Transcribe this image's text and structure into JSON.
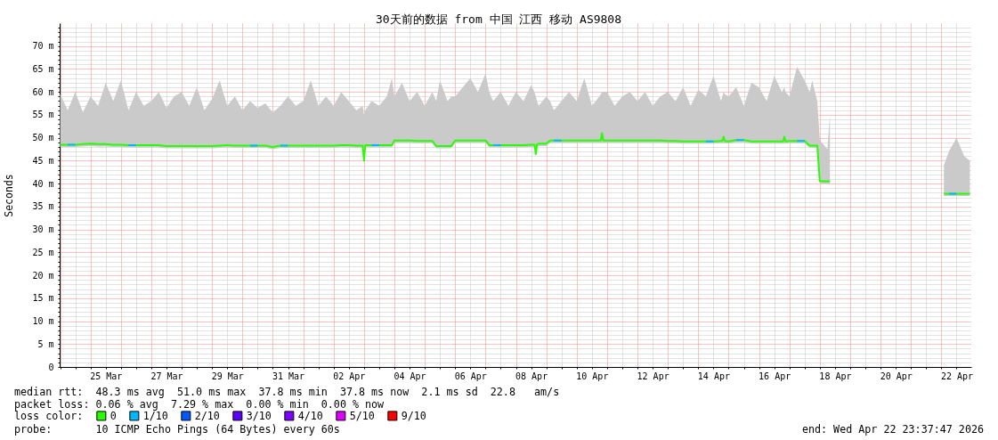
{
  "chart_data": {
    "type": "line",
    "title": "30天前的数据 from 中国 江西 移动 AS9808",
    "ylabel": "Seconds",
    "legend_title": "loss color:",
    "legend": "bottom",
    "grid": true,
    "xlim": [
      "2026-03-23T23:38",
      "2026-04-22T23:38"
    ],
    "xticks": [
      {
        "value": "2026-03-24T00:00",
        "label": null
      },
      {
        "value": "2026-03-24T12:00",
        "label": null
      },
      {
        "value": "2026-03-25T00:00",
        "label": null
      },
      {
        "value": "2026-03-25T12:00",
        "label": "25 Mar"
      },
      {
        "value": "2026-03-26T00:00",
        "label": null
      },
      {
        "value": "2026-03-26T12:00",
        "label": null
      },
      {
        "value": "2026-03-27T00:00",
        "label": null
      },
      {
        "value": "2026-03-27T12:00",
        "label": "27 Mar"
      },
      {
        "value": "2026-03-28T00:00",
        "label": null
      },
      {
        "value": "2026-03-28T12:00",
        "label": null
      },
      {
        "value": "2026-03-29T00:00",
        "label": null
      },
      {
        "value": "2026-03-29T12:00",
        "label": "29 Mar"
      },
      {
        "value": "2026-03-30T00:00",
        "label": null
      },
      {
        "value": "2026-03-30T12:00",
        "label": null
      },
      {
        "value": "2026-03-31T00:00",
        "label": null
      },
      {
        "value": "2026-03-31T12:00",
        "label": "31 Mar"
      },
      {
        "value": "2026-04-01T00:00",
        "label": null
      },
      {
        "value": "2026-04-01T12:00",
        "label": null
      },
      {
        "value": "2026-04-02T00:00",
        "label": null
      },
      {
        "value": "2026-04-02T12:00",
        "label": "02 Apr"
      },
      {
        "value": "2026-04-03T00:00",
        "label": null
      },
      {
        "value": "2026-04-03T12:00",
        "label": null
      },
      {
        "value": "2026-04-04T00:00",
        "label": null
      },
      {
        "value": "2026-04-04T12:00",
        "label": "04 Apr"
      },
      {
        "value": "2026-04-05T00:00",
        "label": null
      },
      {
        "value": "2026-04-05T12:00",
        "label": null
      },
      {
        "value": "2026-04-06T00:00",
        "label": null
      },
      {
        "value": "2026-04-06T12:00",
        "label": "06 Apr"
      },
      {
        "value": "2026-04-07T00:00",
        "label": null
      },
      {
        "value": "2026-04-07T12:00",
        "label": null
      },
      {
        "value": "2026-04-08T00:00",
        "label": null
      },
      {
        "value": "2026-04-08T12:00",
        "label": "08 Apr"
      },
      {
        "value": "2026-04-09T00:00",
        "label": null
      },
      {
        "value": "2026-04-09T12:00",
        "label": null
      },
      {
        "value": "2026-04-10T00:00",
        "label": null
      },
      {
        "value": "2026-04-10T12:00",
        "label": "10 Apr"
      },
      {
        "value": "2026-04-11T00:00",
        "label": null
      },
      {
        "value": "2026-04-11T12:00",
        "label": null
      },
      {
        "value": "2026-04-12T00:00",
        "label": null
      },
      {
        "value": "2026-04-12T12:00",
        "label": "12 Apr"
      },
      {
        "value": "2026-04-13T00:00",
        "label": null
      },
      {
        "value": "2026-04-13T12:00",
        "label": null
      },
      {
        "value": "2026-04-14T00:00",
        "label": null
      },
      {
        "value": "2026-04-14T12:00",
        "label": "14 Apr"
      },
      {
        "value": "2026-04-15T00:00",
        "label": null
      },
      {
        "value": "2026-04-15T12:00",
        "label": null
      },
      {
        "value": "2026-04-16T00:00",
        "label": null
      },
      {
        "value": "2026-04-16T12:00",
        "label": "16 Apr"
      },
      {
        "value": "2026-04-17T00:00",
        "label": null
      },
      {
        "value": "2026-04-17T12:00",
        "label": null
      },
      {
        "value": "2026-04-18T00:00",
        "label": null
      },
      {
        "value": "2026-04-18T12:00",
        "label": "18 Apr"
      },
      {
        "value": "2026-04-19T00:00",
        "label": null
      },
      {
        "value": "2026-04-19T12:00",
        "label": null
      },
      {
        "value": "2026-04-20T00:00",
        "label": null
      },
      {
        "value": "2026-04-20T12:00",
        "label": "20 Apr"
      },
      {
        "value": "2026-04-21T00:00",
        "label": null
      },
      {
        "value": "2026-04-21T12:00",
        "label": null
      },
      {
        "value": "2026-04-22T00:00",
        "label": null
      },
      {
        "value": "2026-04-22T12:00",
        "label": "22 Apr"
      }
    ],
    "ylim": [
      0,
      75
    ],
    "yticks": [
      0,
      {
        "value": 1,
        "label": null
      },
      {
        "value": 2,
        "label": null
      },
      {
        "value": 3,
        "label": null
      },
      {
        "value": 4,
        "label": null
      },
      {
        "value": 5,
        "label": "5 m"
      },
      {
        "value": 6,
        "label": null
      },
      {
        "value": 7,
        "label": null
      },
      {
        "value": 8,
        "label": null
      },
      {
        "value": 9,
        "label": null
      },
      {
        "value": 10,
        "label": "10 m"
      },
      {
        "value": 11,
        "label": null
      },
      {
        "value": 12,
        "label": null
      },
      {
        "value": 13,
        "label": null
      },
      {
        "value": 14,
        "label": null
      },
      {
        "value": 15,
        "label": "15 m"
      },
      {
        "value": 16,
        "label": null
      },
      {
        "value": 17,
        "label": null
      },
      {
        "value": 18,
        "label": null
      },
      {
        "value": 19,
        "label": null
      },
      {
        "value": 20,
        "label": "20 m"
      },
      {
        "value": 21,
        "label": null
      },
      {
        "value": 22,
        "label": null
      },
      {
        "value": 23,
        "label": null
      },
      {
        "value": 24,
        "label": null
      },
      {
        "value": 25,
        "label": "25 m"
      },
      {
        "value": 26,
        "label": null
      },
      {
        "value": 27,
        "label": null
      },
      {
        "value": 28,
        "label": null
      },
      {
        "value": 29,
        "label": null
      },
      {
        "value": 30,
        "label": "30 m"
      },
      {
        "value": 31,
        "label": null
      },
      {
        "value": 32,
        "label": null
      },
      {
        "value": 33,
        "label": null
      },
      {
        "value": 34,
        "label": null
      },
      {
        "value": 35,
        "label": "35 m"
      },
      {
        "value": 36,
        "label": null
      },
      {
        "value": 37,
        "label": null
      },
      {
        "value": 38,
        "label": null
      },
      {
        "value": 39,
        "label": null
      },
      {
        "value": 40,
        "label": "40 m"
      },
      {
        "value": 41,
        "label": null
      },
      {
        "value": 42,
        "label": null
      },
      {
        "value": 43,
        "label": null
      },
      {
        "value": 44,
        "label": null
      },
      {
        "value": 45,
        "label": "45 m"
      },
      {
        "value": 46,
        "label": null
      },
      {
        "value": 47,
        "label": null
      },
      {
        "value": 48,
        "label": null
      },
      {
        "value": 49,
        "label": null
      },
      {
        "value": 50,
        "label": "50 m"
      },
      {
        "value": 51,
        "label": null
      },
      {
        "value": 52,
        "label": null
      },
      {
        "value": 53,
        "label": null
      },
      {
        "value": 54,
        "label": null
      },
      {
        "value": 55,
        "label": "55 m"
      },
      {
        "value": 56,
        "label": null
      },
      {
        "value": 57,
        "label": null
      },
      {
        "value": 58,
        "label": null
      },
      {
        "value": 59,
        "label": null
      },
      {
        "value": 60,
        "label": "60 m"
      },
      {
        "value": 61,
        "label": null
      },
      {
        "value": 62,
        "label": null
      },
      {
        "value": 63,
        "label": null
      },
      {
        "value": 64,
        "label": null
      },
      {
        "value": 65,
        "label": "65 m"
      },
      {
        "value": 66,
        "label": null
      },
      {
        "value": 67,
        "label": null
      },
      {
        "value": 68,
        "label": null
      },
      {
        "value": 69,
        "label": null
      },
      {
        "value": 70,
        "label": "70 m"
      },
      {
        "value": 71,
        "label": null
      },
      {
        "value": 72,
        "label": null
      },
      {
        "value": 73,
        "label": null
      },
      {
        "value": 74,
        "label": null
      }
    ],
    "x": [
      "2026-03-24T00:00",
      "2026-03-24T06:00",
      "2026-03-24T12:00",
      "2026-03-24T18:00",
      "2026-03-25T00:00",
      "2026-03-25T06:00",
      "2026-03-25T12:00",
      "2026-03-25T18:00",
      "2026-03-26T00:00",
      "2026-03-26T06:00",
      "2026-03-26T12:00",
      "2026-03-26T18:00",
      "2026-03-27T00:00",
      "2026-03-27T06:00",
      "2026-03-27T12:00",
      "2026-03-27T18:00",
      "2026-03-28T00:00",
      "2026-03-28T06:00",
      "2026-03-28T12:00",
      "2026-03-28T18:00",
      "2026-03-29T00:00",
      "2026-03-29T06:00",
      "2026-03-29T12:00",
      "2026-03-29T18:00",
      "2026-03-30T00:00",
      "2026-03-30T06:00",
      "2026-03-30T12:00",
      "2026-03-30T18:00",
      "2026-03-31T00:00",
      "2026-03-31T06:00",
      "2026-03-31T12:00",
      "2026-03-31T18:00",
      "2026-04-01T00:00",
      "2026-04-01T06:00",
      "2026-04-01T12:00",
      "2026-04-01T18:00",
      "2026-04-02T00:00",
      "2026-04-02T06:00",
      "2026-04-02T12:00",
      "2026-04-02T18:00",
      "2026-04-02T23:00",
      "2026-04-03T00:00",
      "2026-04-03T01:00",
      "2026-04-03T06:00",
      "2026-04-03T12:00",
      "2026-04-03T18:00",
      "2026-04-03T22:00",
      "2026-04-04T00:00",
      "2026-04-04T06:00",
      "2026-04-04T12:00",
      "2026-04-04T18:00",
      "2026-04-05T00:00",
      "2026-04-05T06:00",
      "2026-04-05T09:00",
      "2026-04-05T12:00",
      "2026-04-05T18:00",
      "2026-04-05T21:00",
      "2026-04-06T00:00",
      "2026-04-06T06:00",
      "2026-04-06T12:00",
      "2026-04-06T18:00",
      "2026-04-07T00:00",
      "2026-04-07T03:00",
      "2026-04-07T06:00",
      "2026-04-07T12:00",
      "2026-04-07T18:00",
      "2026-04-08T00:00",
      "2026-04-08T06:00",
      "2026-04-08T12:00",
      "2026-04-08T14:40",
      "2026-04-08T15:40",
      "2026-04-08T16:40",
      "2026-04-08T18:00",
      "2026-04-09T00:00",
      "2026-04-09T03:00",
      "2026-04-09T06:00",
      "2026-04-09T12:00",
      "2026-04-09T18:00",
      "2026-04-10T00:00",
      "2026-04-10T06:00",
      "2026-04-10T12:00",
      "2026-04-10T18:00",
      "2026-04-10T19:00",
      "2026-04-10T20:00",
      "2026-04-10T21:00",
      "2026-04-11T00:00",
      "2026-04-11T06:00",
      "2026-04-11T12:00",
      "2026-04-11T18:00",
      "2026-04-12T00:00",
      "2026-04-12T06:00",
      "2026-04-12T12:00",
      "2026-04-12T18:00",
      "2026-04-13T00:00",
      "2026-04-13T06:00",
      "2026-04-13T12:00",
      "2026-04-13T18:00",
      "2026-04-14T00:00",
      "2026-04-14T06:00",
      "2026-04-14T12:00",
      "2026-04-14T18:00",
      "2026-04-14T19:00",
      "2026-04-14T20:00",
      "2026-04-14T21:00",
      "2026-04-15T00:00",
      "2026-04-15T06:00",
      "2026-04-15T12:00",
      "2026-04-15T18:00",
      "2026-04-16T00:00",
      "2026-04-16T06:00",
      "2026-04-16T12:00",
      "2026-04-16T18:00",
      "2026-04-16T19:00",
      "2026-04-16T20:00",
      "2026-04-16T21:00",
      "2026-04-17T00:00",
      "2026-04-17T06:00",
      "2026-04-17T12:00",
      "2026-04-17T16:00",
      "2026-04-17T18:00",
      "2026-04-17T22:00",
      "2026-04-18T00:00",
      "2026-04-18T06:00",
      "2026-04-18T08:00",
      "2026-04-20T00:00",
      "2026-04-22T02:00",
      "2026-04-22T06:00",
      "2026-04-22T12:00",
      "2026-04-22T18:00",
      "2026-04-22T22:30"
    ],
    "series": [
      {
        "name": "0",
        "color": "#26ff00",
        "values": [
          48.5,
          48.5,
          48.5,
          48.6,
          48.7,
          48.6,
          48.6,
          48.5,
          48.5,
          48.4,
          48.4,
          48.4,
          48.4,
          48.4,
          48.2,
          48.2,
          48.2,
          48.2,
          48.2,
          48.2,
          48.2,
          48.3,
          48.4,
          48.3,
          48.3,
          48.3,
          48.3,
          48.3,
          48.0,
          48.3,
          48.3,
          48.3,
          48.3,
          48.3,
          48.3,
          48.3,
          48.3,
          48.4,
          48.4,
          48.3,
          48.3,
          45.0,
          48.4,
          48.4,
          48.4,
          48.4,
          48.4,
          49.4,
          49.4,
          49.4,
          49.3,
          49.3,
          49.3,
          48.2,
          48.2,
          48.2,
          48.2,
          49.4,
          49.4,
          49.4,
          49.4,
          49.4,
          48.4,
          48.4,
          48.4,
          48.4,
          48.4,
          48.4,
          48.5,
          48.5,
          46.4,
          48.6,
          48.7,
          48.7,
          49.4,
          49.4,
          49.4,
          49.4,
          49.4,
          49.4,
          49.4,
          49.4,
          49.4,
          51.0,
          49.4,
          49.4,
          49.4,
          49.4,
          49.4,
          49.4,
          49.4,
          49.4,
          49.4,
          49.3,
          49.3,
          49.2,
          49.2,
          49.2,
          49.2,
          49.2,
          49.3,
          49.3,
          50.2,
          49.3,
          49.2,
          49.5,
          49.5,
          49.2,
          49.2,
          49.2,
          49.2,
          49.2,
          49.2,
          50.2,
          49.2,
          49.3,
          49.3,
          49.3,
          48.3,
          48.3,
          48.3,
          40.5,
          40.5,
          40.5,
          null,
          37.8,
          37.8,
          37.8,
          37.8,
          37.8
        ],
        "lower": [
          48.0,
          48.0,
          48.0,
          48.1,
          48.2,
          48.1,
          48.1,
          48.0,
          48.0,
          47.9,
          47.9,
          47.9,
          47.9,
          47.9,
          47.7,
          47.7,
          47.7,
          47.7,
          47.7,
          47.7,
          47.7,
          47.8,
          47.9,
          47.8,
          47.8,
          47.8,
          47.8,
          47.8,
          47.5,
          47.8,
          47.8,
          47.8,
          47.8,
          47.8,
          47.8,
          47.8,
          47.8,
          47.9,
          47.9,
          47.8,
          47.8,
          47.9,
          47.9,
          47.9,
          47.9,
          47.9,
          47.9,
          48.9,
          48.9,
          48.9,
          48.8,
          48.8,
          48.8,
          47.7,
          47.7,
          47.7,
          47.7,
          48.9,
          48.9,
          48.9,
          48.9,
          48.9,
          47.9,
          47.9,
          47.9,
          47.9,
          47.9,
          47.9,
          48.0,
          48.0,
          47.9,
          48.1,
          48.2,
          48.2,
          48.9,
          48.9,
          48.9,
          48.9,
          48.9,
          48.9,
          48.9,
          48.9,
          48.9,
          48.9,
          48.9,
          48.9,
          48.9,
          48.9,
          48.9,
          48.9,
          48.9,
          48.9,
          48.9,
          48.8,
          48.8,
          48.7,
          48.7,
          48.7,
          48.7,
          48.7,
          48.8,
          48.8,
          48.8,
          48.8,
          48.7,
          49.0,
          49.0,
          48.7,
          48.7,
          48.7,
          48.7,
          48.7,
          48.7,
          48.7,
          48.7,
          48.8,
          48.8,
          48.8,
          47.8,
          47.8,
          47.8,
          40.0,
          40.0,
          40.0,
          null,
          37.3,
          37.3,
          37.3,
          37.3,
          37.3
        ],
        "upper": [
          59.5,
          56.0,
          60.0,
          55.5,
          59.0,
          57.0,
          62.0,
          58.0,
          62.5,
          56.0,
          60.0,
          57.0,
          58.0,
          60.0,
          56.5,
          59.0,
          60.0,
          57.0,
          61.0,
          56.0,
          58.5,
          62.5,
          57.0,
          59.0,
          56.0,
          58.0,
          56.5,
          57.5,
          55.5,
          57.0,
          59.0,
          57.0,
          58.0,
          62.5,
          57.0,
          59.0,
          57.0,
          60.0,
          58.0,
          56.0,
          57.0,
          55.0,
          56.0,
          58.0,
          57.0,
          59.0,
          63.0,
          59.0,
          62.0,
          58.0,
          60.0,
          57.0,
          60.0,
          58.0,
          62.5,
          58.0,
          59.0,
          59.0,
          61.0,
          63.0,
          60.0,
          64.0,
          60.0,
          58.0,
          60.0,
          57.0,
          60.0,
          58.0,
          61.5,
          60.0,
          59.0,
          58.0,
          57.0,
          59.0,
          58.0,
          56.0,
          58.0,
          60.0,
          58.0,
          63.0,
          57.0,
          59.0,
          59.5,
          60.0,
          60.0,
          60.0,
          57.0,
          59.0,
          60.0,
          58.0,
          60.0,
          57.0,
          59.0,
          60.0,
          58.0,
          61.0,
          57.0,
          60.5,
          59.0,
          63.5,
          58.0,
          59.0,
          60.0,
          59.5,
          59.0,
          61.0,
          57.0,
          62.0,
          61.0,
          58.0,
          63.5,
          60.0,
          60.5,
          61.0,
          60.0,
          59.0,
          65.5,
          62.5,
          60.0,
          62.5,
          58.0,
          49.5,
          47.5,
          55.0,
          null,
          44.0,
          47.0,
          50.0,
          46.0,
          45.0
        ]
      },
      {
        "name": "1/10",
        "color": "#00b8ff",
        "x": [
          "2026-03-24T06:00",
          "2026-03-24T12:00",
          "2026-03-24T13:00",
          "2026-03-26T06:00",
          "2026-03-26T12:00",
          "2026-03-26T13:00",
          "2026-03-30T06:00",
          "2026-03-30T12:00",
          "2026-03-30T13:00",
          "2026-03-31T06:00",
          "2026-03-31T12:00",
          "2026-03-31T13:00",
          "2026-04-03T06:00",
          "2026-04-03T12:00",
          "2026-04-03T13:00",
          "2026-04-07T06:00",
          "2026-04-07T12:00",
          "2026-04-07T13:00",
          "2026-04-09T06:00",
          "2026-04-09T12:00",
          "2026-04-09T13:00",
          "2026-04-14T06:00",
          "2026-04-14T12:00",
          "2026-04-14T13:00",
          "2026-04-15T06:00",
          "2026-04-15T12:00",
          "2026-04-15T13:00",
          "2026-04-17T06:00",
          "2026-04-17T12:00",
          "2026-04-17T13:00",
          "2026-04-22T06:00",
          "2026-04-22T12:00"
        ],
        "values": [
          48.5,
          48.5,
          null,
          48.4,
          48.4,
          null,
          48.3,
          48.3,
          null,
          48.3,
          48.3,
          null,
          48.4,
          48.4,
          null,
          48.4,
          48.4,
          null,
          49.4,
          49.4,
          null,
          49.2,
          49.2,
          null,
          49.5,
          49.5,
          null,
          49.3,
          49.3,
          null,
          37.8,
          37.8
        ]
      },
      {
        "name": "2/10",
        "color": "#0059ff",
        "values": [
          null,
          null,
          null,
          null,
          null,
          null,
          null,
          null,
          null,
          null,
          null,
          null,
          null,
          null,
          null,
          null,
          null,
          null,
          null,
          null,
          null,
          null,
          null,
          null,
          null,
          null,
          null,
          null,
          null,
          null,
          null,
          null,
          null,
          null,
          null,
          null,
          null,
          null,
          null,
          null,
          null,
          null,
          null,
          null,
          null,
          null,
          null,
          null,
          null,
          null,
          null,
          null,
          null,
          null,
          null,
          null,
          null,
          null,
          null,
          null,
          null,
          null,
          null,
          null,
          null,
          null,
          null,
          null,
          null,
          null,
          null,
          null,
          null,
          null,
          null,
          null,
          null,
          null,
          null,
          null,
          null,
          null,
          null,
          null,
          null,
          null,
          null,
          null,
          null,
          null,
          null,
          null,
          null,
          null,
          null,
          null,
          null,
          null,
          null,
          null,
          null,
          null,
          null,
          null,
          null,
          null,
          null,
          null,
          null,
          null,
          null,
          null,
          null,
          null,
          null,
          null,
          null,
          null,
          null,
          null,
          null,
          null,
          null,
          null,
          null,
          null,
          null,
          null,
          null,
          null
        ]
      },
      {
        "name": "3/10",
        "color": "#5e00ff",
        "values": [
          null,
          null,
          null,
          null,
          null,
          null,
          null,
          null,
          null,
          null,
          null,
          null,
          null,
          null,
          null,
          null,
          null,
          null,
          null,
          null,
          null,
          null,
          null,
          null,
          null,
          null,
          null,
          null,
          null,
          null,
          null,
          null,
          null,
          null,
          null,
          null,
          null,
          null,
          null,
          null,
          null,
          null,
          null,
          null,
          null,
          null,
          null,
          null,
          null,
          null,
          null,
          null,
          null,
          null,
          null,
          null,
          null,
          null,
          null,
          null,
          null,
          null,
          null,
          null,
          null,
          null,
          null,
          null,
          null,
          null,
          null,
          null,
          null,
          null,
          null,
          null,
          null,
          null,
          null,
          null,
          null,
          null,
          null,
          null,
          null,
          null,
          null,
          null,
          null,
          null,
          null,
          null,
          null,
          null,
          null,
          null,
          null,
          null,
          null,
          null,
          null,
          null,
          null,
          null,
          null,
          null,
          null,
          null,
          null,
          null,
          null,
          null,
          null,
          null,
          null,
          null,
          null,
          null,
          null,
          null,
          null,
          null,
          null,
          null,
          null,
          null,
          null,
          null,
          null,
          null
        ]
      },
      {
        "name": "4/10",
        "color": "#7e00ff",
        "values": [
          null,
          null,
          null,
          null,
          null,
          null,
          null,
          null,
          null,
          null,
          null,
          null,
          null,
          null,
          null,
          null,
          null,
          null,
          null,
          null,
          null,
          null,
          null,
          null,
          null,
          null,
          null,
          null,
          null,
          null,
          null,
          null,
          null,
          null,
          null,
          null,
          null,
          null,
          null,
          null,
          null,
          null,
          null,
          null,
          null,
          null,
          null,
          null,
          null,
          null,
          null,
          null,
          null,
          null,
          null,
          null,
          null,
          null,
          null,
          null,
          null,
          null,
          null,
          null,
          null,
          null,
          null,
          null,
          null,
          null,
          null,
          null,
          null,
          null,
          null,
          null,
          null,
          null,
          null,
          null,
          null,
          null,
          null,
          null,
          null,
          null,
          null,
          null,
          null,
          null,
          null,
          null,
          null,
          null,
          null,
          null,
          null,
          null,
          null,
          null,
          null,
          null,
          null,
          null,
          null,
          null,
          null,
          null,
          null,
          null,
          null,
          null,
          null,
          null,
          null,
          null,
          null,
          null,
          null,
          null,
          null,
          null,
          null,
          null,
          null,
          null,
          null,
          null,
          null,
          null
        ]
      },
      {
        "name": "5/10",
        "color": "#dd00ff",
        "values": [
          null,
          null,
          null,
          null,
          null,
          null,
          null,
          null,
          null,
          null,
          null,
          null,
          null,
          null,
          null,
          null,
          null,
          null,
          null,
          null,
          null,
          null,
          null,
          null,
          null,
          null,
          null,
          null,
          null,
          null,
          null,
          null,
          null,
          null,
          null,
          null,
          null,
          null,
          null,
          null,
          null,
          null,
          null,
          null,
          null,
          null,
          null,
          null,
          null,
          null,
          null,
          null,
          null,
          null,
          null,
          null,
          null,
          null,
          null,
          null,
          null,
          null,
          null,
          null,
          null,
          null,
          null,
          null,
          null,
          null,
          null,
          null,
          null,
          null,
          null,
          null,
          null,
          null,
          null,
          null,
          null,
          null,
          null,
          null,
          null,
          null,
          null,
          null,
          null,
          null,
          null,
          null,
          null,
          null,
          null,
          null,
          null,
          null,
          null,
          null,
          null,
          null,
          null,
          null,
          null,
          null,
          null,
          null,
          null,
          null,
          null,
          null,
          null,
          null,
          null,
          null,
          null,
          null,
          null,
          null,
          null,
          null,
          null,
          null,
          null,
          null,
          null,
          null,
          null,
          null
        ]
      },
      {
        "name": "9/10",
        "color": "#ff0000",
        "values": [
          null,
          null,
          null,
          null,
          null,
          null,
          null,
          null,
          null,
          null,
          null,
          null,
          null,
          null,
          null,
          null,
          null,
          null,
          null,
          null,
          null,
          null,
          null,
          null,
          null,
          null,
          null,
          null,
          null,
          null,
          null,
          null,
          null,
          null,
          null,
          null,
          null,
          null,
          null,
          null,
          null,
          null,
          null,
          null,
          null,
          null,
          null,
          null,
          null,
          null,
          null,
          null,
          null,
          null,
          null,
          null,
          null,
          null,
          null,
          null,
          null,
          null,
          null,
          null,
          null,
          null,
          null,
          null,
          null,
          null,
          null,
          null,
          null,
          null,
          null,
          null,
          null,
          null,
          null,
          null,
          null,
          null,
          null,
          null,
          null,
          null,
          null,
          null,
          null,
          null,
          null,
          null,
          null,
          null,
          null,
          null,
          null,
          null,
          null,
          null,
          null,
          null,
          null,
          null,
          null,
          null,
          null,
          null,
          null,
          null,
          null,
          null,
          null,
          null,
          null,
          null,
          null,
          null,
          null,
          null,
          null,
          null,
          null,
          null,
          null,
          null,
          null,
          null,
          null,
          null
        ]
      }
    ],
    "annotations": [
      "median rtt:  48.3 ms avg  51.0 ms max  37.8 ms min  37.8 ms now  2.1 ms sd  22.8   am/s",
      "packet loss: 0.06 % avg  7.29 % max  0.00 % min  0.00 % now",
      "probe:       10 ICMP Echo Pings (64 Bytes) every 60s",
      "end: Wed Apr 22 23:37:47 2026"
    ]
  }
}
